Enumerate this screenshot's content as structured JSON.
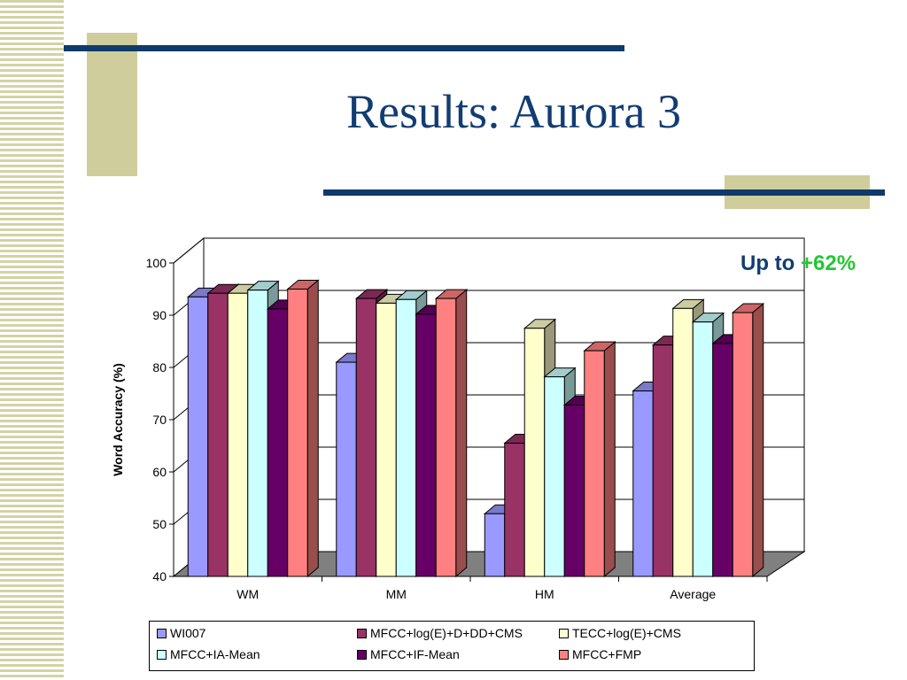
{
  "slide": {
    "title": "Results: Aurora 3",
    "annotation_prefix": "Up to ",
    "annotation_highlight": "+62%"
  },
  "chart_data": {
    "type": "bar",
    "title": "",
    "xlabel": "",
    "ylabel": "Word Accuracy (%)",
    "ylim": [
      40,
      100
    ],
    "yticks": [
      40,
      50,
      60,
      70,
      80,
      90,
      100
    ],
    "categories": [
      "WM",
      "MM",
      "HM",
      "Average"
    ],
    "grid": true,
    "legend_position": "bottom",
    "series": [
      {
        "name": "WI007",
        "color": "#9999ff",
        "values": [
          93.5,
          81,
          52,
          75.5
        ]
      },
      {
        "name": "MFCC+log(E)+D+DD+CMS",
        "color": "#993366",
        "values": [
          94.2,
          93.2,
          65.5,
          84.3
        ]
      },
      {
        "name": "TECC+log(E)+CMS",
        "color": "#ffffcc",
        "values": [
          94.2,
          92.3,
          87.5,
          91.3
        ]
      },
      {
        "name": "MFCC+IA-Mean",
        "color": "#ccffff",
        "values": [
          94.8,
          93,
          78.2,
          88.7
        ]
      },
      {
        "name": "MFCC+IF-Mean",
        "color": "#660066",
        "values": [
          91.2,
          90.2,
          72.8,
          84.6
        ]
      },
      {
        "name": "MFCC+FMP",
        "color": "#ff8080",
        "values": [
          95,
          93.2,
          83.2,
          90.5
        ]
      }
    ]
  }
}
